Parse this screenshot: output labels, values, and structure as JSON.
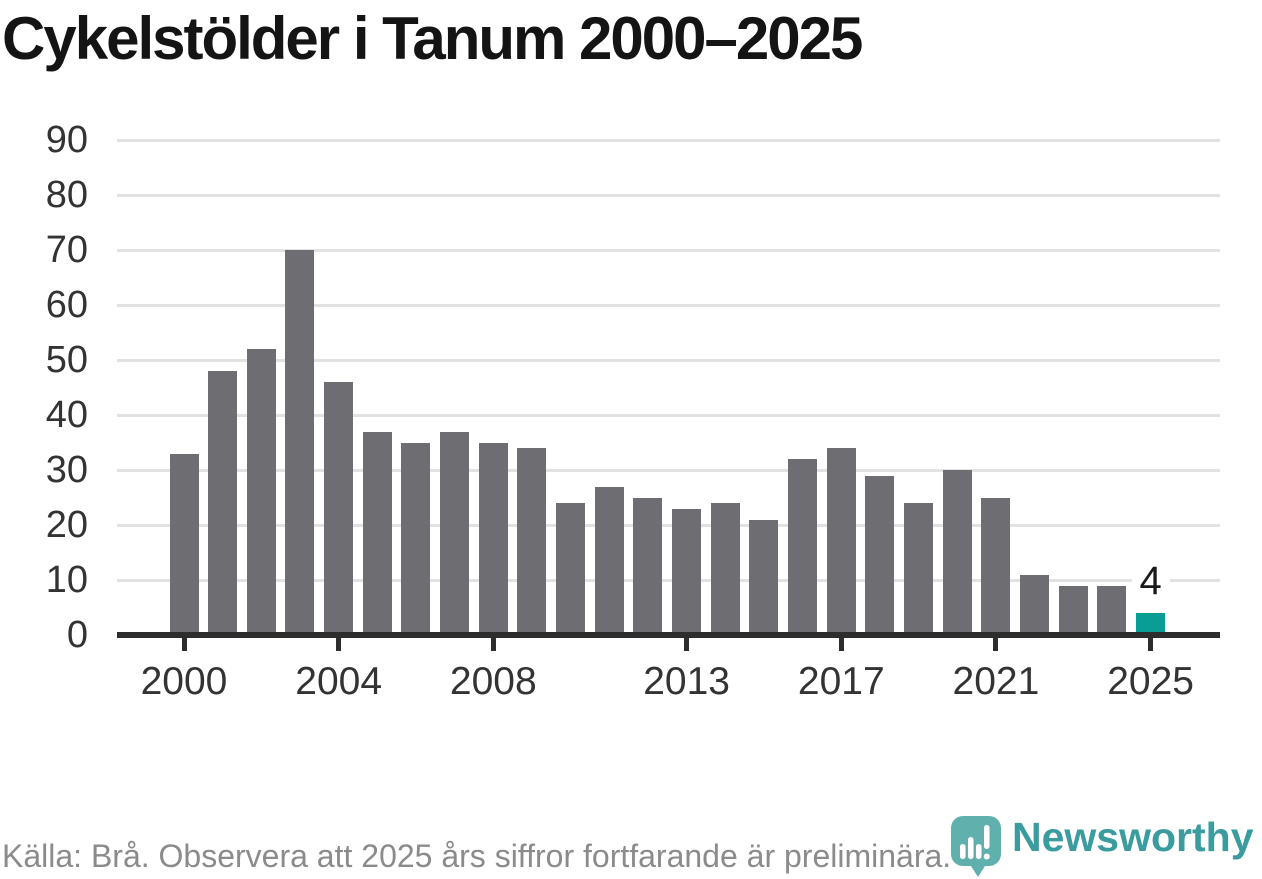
{
  "title": "Cykelstölder i Tanum 2000–2025",
  "chart_data": {
    "type": "bar",
    "title": "Cykelstölder i Tanum 2000–2025",
    "xlabel": "",
    "ylabel": "",
    "x": [
      2000,
      2001,
      2002,
      2003,
      2004,
      2005,
      2006,
      2007,
      2008,
      2009,
      2010,
      2011,
      2012,
      2013,
      2014,
      2015,
      2016,
      2017,
      2018,
      2019,
      2020,
      2021,
      2022,
      2023,
      2024,
      2025
    ],
    "values": [
      33,
      48,
      52,
      70,
      46,
      37,
      35,
      37,
      35,
      34,
      24,
      27,
      25,
      23,
      24,
      21,
      32,
      34,
      29,
      24,
      30,
      25,
      11,
      9,
      9,
      4
    ],
    "ylim": [
      0,
      90
    ],
    "y_ticks": [
      0,
      10,
      20,
      30,
      40,
      50,
      60,
      70,
      80,
      90
    ],
    "x_tick_years": [
      2000,
      2004,
      2008,
      2013,
      2017,
      2021,
      2025
    ],
    "grid": true,
    "legend_position": "none",
    "highlight_year": 2025,
    "bar_color": "#6d6d72",
    "highlight_color": "#089e96",
    "annotation": {
      "text": "4",
      "year": 2025,
      "value": 4
    }
  },
  "footer": {
    "source_text": "Källa: Brå. Observera att 2025 års siffror fortfarande är preliminära.",
    "brand": "Newsworthy"
  },
  "colors": {
    "title_text": "#141414",
    "axis_text": "#333333",
    "grid_line": "#e2e2e2",
    "axis_line": "#2d2d2d",
    "muted_text": "#8b8b8b",
    "annotation_text": "#1a1a1a",
    "brand_teal": "#3a9c9e",
    "logo_teal": "#4aa5a2"
  }
}
